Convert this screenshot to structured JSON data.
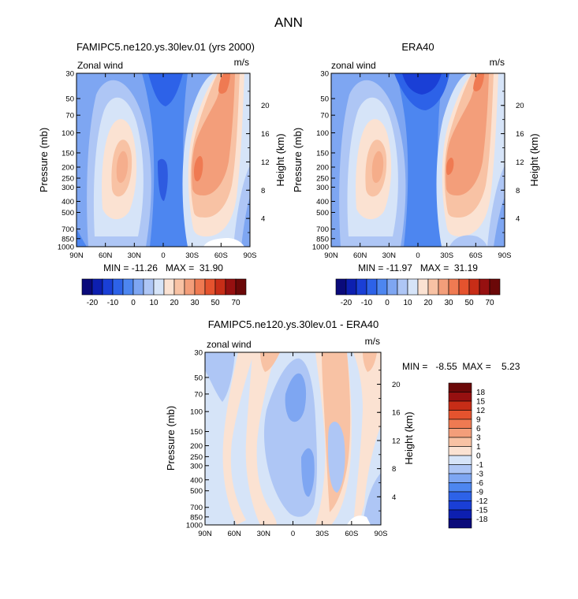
{
  "page_title": "ANN",
  "chart_data": [
    {
      "type": "heatmap",
      "title": "FAMIPC5.ne120.ys.30lev.01 (yrs 2000)",
      "left_label": "Zonal wind",
      "units": "m/s",
      "ylabel": "Pressure (mb)",
      "y2label": "Height (km)",
      "x_ticks": [
        "90N",
        "60N",
        "30N",
        "0",
        "30S",
        "60S",
        "90S"
      ],
      "y_ticks": [
        "30",
        "50",
        "70",
        "100",
        "150",
        "200",
        "250",
        "300",
        "400",
        "500",
        "700",
        "850",
        "1000"
      ],
      "y2_ticks": [
        "20",
        "16",
        "12",
        "8",
        "4"
      ],
      "stats_text": "MIN = -11.26   MAX =  31.90",
      "legend_labels": [
        "-20",
        "-10",
        "0",
        "10",
        "20",
        "30",
        "50",
        "70"
      ],
      "levels": [
        -20,
        -15,
        -10,
        -5,
        0,
        5,
        10,
        15,
        20,
        25,
        30,
        40,
        50,
        60,
        70
      ],
      "field": [
        {
          "lat": 35,
          "p": 200,
          "value": 18
        },
        {
          "lat": -40,
          "p": 200,
          "value": 31.9
        },
        {
          "lat": 0,
          "p": 70,
          "value": -11.26
        }
      ]
    },
    {
      "type": "heatmap",
      "title": "ERA40",
      "left_label": "zonal wind",
      "units": "m/s",
      "ylabel": "Pressure (mb)",
      "y2label": "Height (km)",
      "x_ticks": [
        "90N",
        "60N",
        "30N",
        "0",
        "30S",
        "60S",
        "90S"
      ],
      "y_ticks": [
        "30",
        "50",
        "70",
        "100",
        "150",
        "200",
        "250",
        "300",
        "400",
        "500",
        "700",
        "850",
        "1000"
      ],
      "y2_ticks": [
        "20",
        "16",
        "12",
        "8",
        "4"
      ],
      "stats_text": "MIN = -11.97   MAX =  31.19",
      "legend_labels": [
        "-20",
        "-10",
        "0",
        "10",
        "20",
        "30",
        "50",
        "70"
      ],
      "levels": [
        -20,
        -15,
        -10,
        -5,
        0,
        5,
        10,
        15,
        20,
        25,
        30,
        40,
        50,
        60,
        70
      ],
      "field": [
        {
          "lat": 35,
          "p": 200,
          "value": 20
        },
        {
          "lat": -40,
          "p": 200,
          "value": 31.19
        },
        {
          "lat": 5,
          "p": 50,
          "value": -11.97
        }
      ]
    },
    {
      "type": "heatmap",
      "title": "FAMIPC5.ne120.ys.30lev.01 - ERA40",
      "left_label": "zonal wind",
      "units": "m/s",
      "ylabel": "Pressure (mb)",
      "y2label": "Height (km)",
      "x_ticks": [
        "90N",
        "60N",
        "30N",
        "0",
        "30S",
        "60S",
        "90S"
      ],
      "y_ticks": [
        "30",
        "50",
        "70",
        "100",
        "150",
        "200",
        "250",
        "300",
        "400",
        "500",
        "700",
        "850",
        "1000"
      ],
      "y2_ticks": [
        "20",
        "16",
        "12",
        "8",
        "4"
      ],
      "stats_text": "MIN =   -8.55  MAX =    5.23",
      "legend_labels": [
        "18",
        "15",
        "12",
        "9",
        "6",
        "3",
        "1",
        "0",
        "-1",
        "-3",
        "-6",
        "-9",
        "-12",
        "-15",
        "-18"
      ],
      "levels": [
        -18,
        -15,
        -12,
        -9,
        -6,
        -3,
        -1,
        0,
        1,
        3,
        6,
        9,
        12,
        15,
        18
      ],
      "field": [
        {
          "lat": 10,
          "p": 100,
          "value": -8.55
        },
        {
          "lat": -40,
          "p": 70,
          "value": 5.23
        }
      ]
    }
  ],
  "colors": {
    "scale": [
      "#0a0a7a",
      "#0d1fb0",
      "#1a3fd6",
      "#2d62e8",
      "#4d86f0",
      "#7ea6f2",
      "#aec6f5",
      "#d6e4f8",
      "#fbe2d2",
      "#f8c2a4",
      "#f39e7a",
      "#ef7a52",
      "#e5532e",
      "#c72d17",
      "#961010",
      "#6b0808"
    ],
    "background": "#ffffff"
  }
}
